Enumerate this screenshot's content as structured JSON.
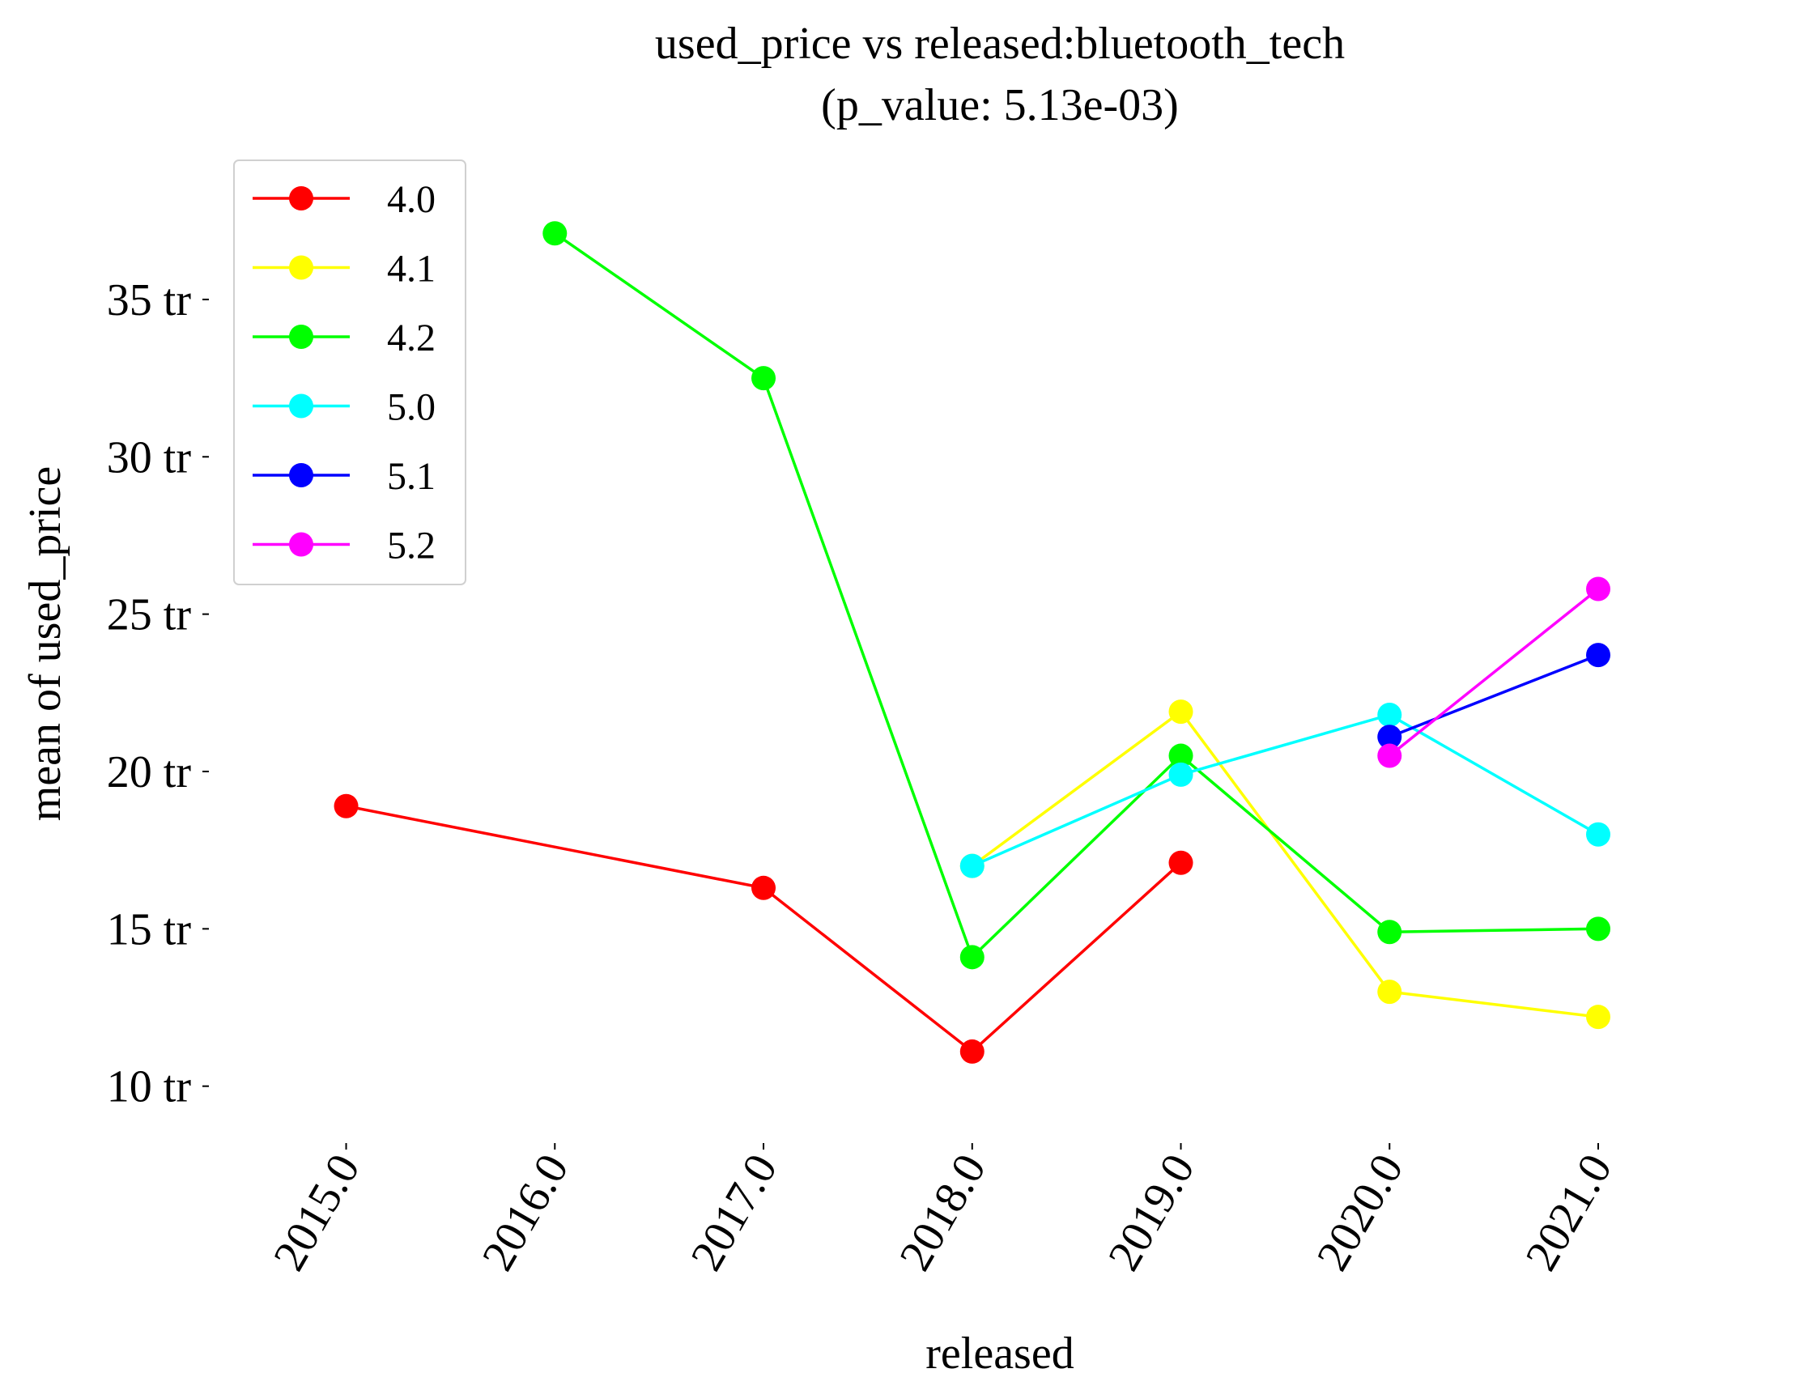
{
  "chart_data": {
    "type": "line",
    "title": "used_price vs released:bluetooth_tech",
    "subtitle": "(p_value: 5.13e-03)",
    "xlabel": "released",
    "ylabel": "mean of used_price",
    "x": [
      2015,
      2016,
      2017,
      2018,
      2019,
      2020,
      2021
    ],
    "x_tick_labels": [
      "2015.0",
      "2016.0",
      "2017.0",
      "2018.0",
      "2019.0",
      "2020.0",
      "2021.0"
    ],
    "y_ticks": [
      10,
      15,
      20,
      25,
      30,
      35
    ],
    "y_tick_labels": [
      "10 tr",
      "15 tr",
      "20 tr",
      "25 tr",
      "30 tr",
      "35 tr"
    ],
    "ylim": [
      8.5,
      39.5
    ],
    "xlim": [
      2014.35,
      2021.45
    ],
    "grid": false,
    "legend_position": "top-left",
    "series": [
      {
        "name": "4.0",
        "color": "#ff0000",
        "x": [
          2015,
          2017,
          2018,
          2019
        ],
        "values": [
          18.9,
          16.3,
          11.1,
          17.1
        ]
      },
      {
        "name": "4.1",
        "color": "#ffff00",
        "x": [
          2018,
          2019,
          2020,
          2021
        ],
        "values": [
          17.0,
          21.9,
          13.0,
          12.2
        ]
      },
      {
        "name": "4.2",
        "color": "#00ff00",
        "x": [
          2016,
          2017,
          2018,
          2019,
          2020,
          2021
        ],
        "values": [
          37.1,
          32.5,
          14.1,
          20.5,
          14.9,
          15.0
        ]
      },
      {
        "name": "5.0",
        "color": "#00ffff",
        "x": [
          2018,
          2019,
          2020,
          2021
        ],
        "values": [
          17.0,
          19.9,
          21.8,
          18.0
        ]
      },
      {
        "name": "5.1",
        "color": "#0000ff",
        "x": [
          2020,
          2021
        ],
        "values": [
          21.1,
          23.7
        ]
      },
      {
        "name": "5.2",
        "color": "#ff00ff",
        "x": [
          2020,
          2021
        ],
        "values": [
          20.5,
          25.8
        ]
      }
    ]
  }
}
